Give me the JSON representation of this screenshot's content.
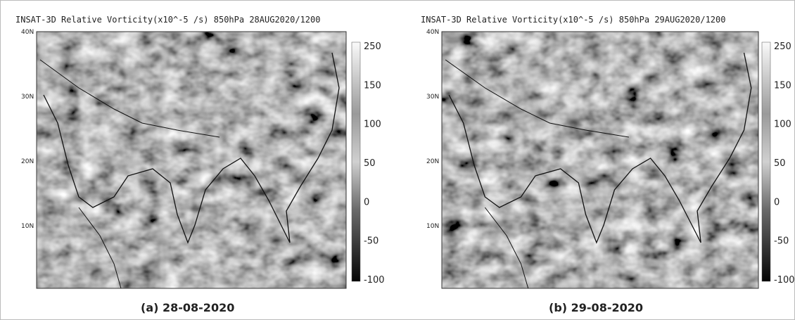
{
  "panels": [
    {
      "title": "INSAT-3D Relative Vorticity(x10^-5 /s) 850hPa 28AUG2020/1200",
      "lat_labels": [
        "40N",
        "30N",
        "20N",
        "10N"
      ],
      "colorbar": [
        250,
        150,
        100,
        50,
        0,
        -50,
        -100
      ],
      "caption": "(a) 28-08-2020"
    },
    {
      "title": "INSAT-3D Relative Vorticity(x10^-5 /s) 850hPa 29AUG2020/1200",
      "lat_labels": [
        "40N",
        "30N",
        "20N",
        "10N"
      ],
      "colorbar": [
        250,
        150,
        100,
        50,
        0,
        -50,
        -100
      ],
      "caption": "(b) 29-08-2020"
    }
  ]
}
